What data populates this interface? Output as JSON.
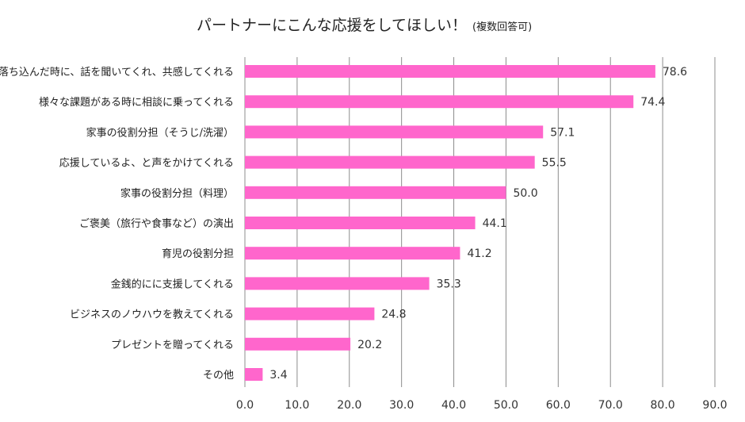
{
  "chart_data": {
    "type": "bar",
    "orientation": "horizontal",
    "title": "パートナーにこんな応援をしてほしい！",
    "subtitle": "(複数回答可)",
    "categories": [
      "落ち込んだ時に、話を聞いてくれ、共感してくれる",
      "様々な課題がある時に相談に乗ってくれる",
      "家事の役割分担（そうじ/洗濯）",
      "応援しているよ、と声をかけてくれる",
      "家事の役割分担（料理）",
      "ご褒美（旅行や食事など）の演出",
      "育児の役割分担",
      "金銭的にに支援してくれる",
      "ビジネスのノウハウを教えてくれる",
      "プレゼントを贈ってくれる",
      "その他"
    ],
    "values": [
      78.6,
      74.4,
      57.1,
      55.5,
      50.0,
      44.1,
      41.2,
      35.3,
      24.8,
      20.2,
      3.4
    ],
    "value_labels": [
      "78.6",
      "74.4",
      "57.1",
      "55.5",
      "50.0",
      "44.1",
      "41.2",
      "35.3",
      "24.8",
      "20.2",
      "3.4"
    ],
    "xlim": [
      0,
      90
    ],
    "x_ticks": [
      "0.0",
      "10.0",
      "20.0",
      "30.0",
      "40.0",
      "50.0",
      "60.0",
      "70.0",
      "80.0",
      "90.0"
    ],
    "grid": "vertical",
    "bar_color": "#ff66cc",
    "xlabel": "",
    "ylabel": ""
  }
}
